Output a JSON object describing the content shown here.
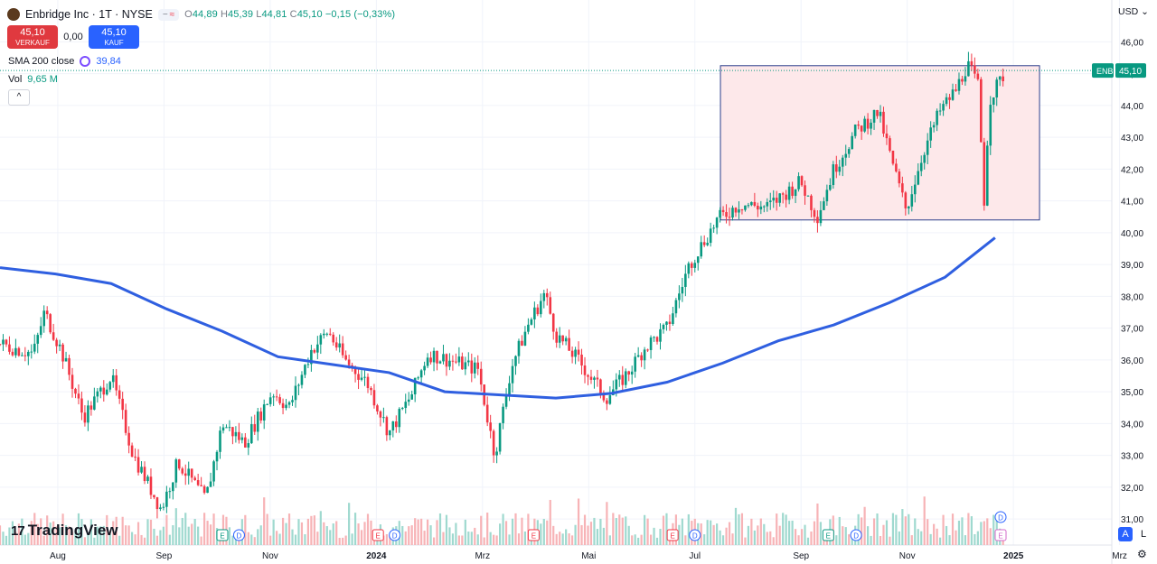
{
  "header": {
    "title": "Enbridge Inc · 1T · NYSE",
    "ohlc": {
      "open_label": "O",
      "open": "44,89",
      "high_label": "H",
      "high": "45,39",
      "low_label": "L",
      "low": "44,81",
      "close_label": "C",
      "close": "45,10",
      "change": "−0,15 (−0,33%)"
    },
    "pill_icons": [
      "minus-icon",
      "approx-icon"
    ]
  },
  "trade": {
    "sell_price": "45,10",
    "sell_label": "VERKAUF",
    "spread": "0,00",
    "buy_price": "45,10",
    "buy_label": "KAUF"
  },
  "indicators": {
    "sma_label": "SMA 200 close",
    "sma_value": "39,84",
    "vol_label": "Vol",
    "vol_value": "9,65 M"
  },
  "currency": "USD",
  "price_tag": {
    "symbol": "ENB",
    "price": "45,10"
  },
  "logo_text": "TradingView",
  "controls": {
    "auto": "A",
    "log": "L"
  },
  "colors": {
    "up": "#089981",
    "down": "#f23645",
    "sma": "#2f5fe0",
    "box_fill": "#fde8ea",
    "box_stroke": "#2c3e8c",
    "price_line": "#089981"
  },
  "chart_data": {
    "type": "candlestick",
    "y_ticks": [
      "46,00",
      "45,00",
      "44,00",
      "43,00",
      "42,00",
      "41,00",
      "40,00",
      "39,00",
      "38,00",
      "37,00",
      "36,00",
      "35,00",
      "34,00",
      "33,00",
      "32,00",
      "31,00"
    ],
    "y_range": [
      30.5,
      46.5
    ],
    "x_ticks": [
      "Aug",
      "Sep",
      "Nov",
      "2024",
      "Mrz",
      "Mai",
      "Jul",
      "Sep",
      "Nov",
      "2025",
      "Mrz"
    ],
    "price_anchors": [
      [
        0,
        36.5
      ],
      [
        0.03,
        36.2
      ],
      [
        0.04,
        37.5
      ],
      [
        0.055,
        36.3
      ],
      [
        0.075,
        34.2
      ],
      [
        0.1,
        35.5
      ],
      [
        0.12,
        33.0
      ],
      [
        0.145,
        31.3
      ],
      [
        0.16,
        32.8
      ],
      [
        0.185,
        31.6
      ],
      [
        0.2,
        34.0
      ],
      [
        0.22,
        33.4
      ],
      [
        0.245,
        35.0
      ],
      [
        0.26,
        34.5
      ],
      [
        0.28,
        36.3
      ],
      [
        0.295,
        36.9
      ],
      [
        0.31,
        36.0
      ],
      [
        0.33,
        35.3
      ],
      [
        0.35,
        33.7
      ],
      [
        0.37,
        34.9
      ],
      [
        0.385,
        36.2
      ],
      [
        0.43,
        35.7
      ],
      [
        0.445,
        33.0
      ],
      [
        0.46,
        35.8
      ],
      [
        0.475,
        37.1
      ],
      [
        0.49,
        38.1
      ],
      [
        0.5,
        36.8
      ],
      [
        0.52,
        36.0
      ],
      [
        0.545,
        34.8
      ],
      [
        0.565,
        35.6
      ],
      [
        0.58,
        36.4
      ],
      [
        0.6,
        37.0
      ],
      [
        0.62,
        39.0
      ],
      [
        0.645,
        40.4
      ],
      [
        0.665,
        40.9
      ],
      [
        0.69,
        40.8
      ],
      [
        0.72,
        41.6
      ],
      [
        0.735,
        40.5
      ],
      [
        0.75,
        42.0
      ],
      [
        0.77,
        43.2
      ],
      [
        0.79,
        43.8
      ],
      [
        0.8,
        42.5
      ],
      [
        0.815,
        40.7
      ],
      [
        0.83,
        42.5
      ],
      [
        0.845,
        43.8
      ],
      [
        0.86,
        44.5
      ],
      [
        0.87,
        45.3
      ],
      [
        0.88,
        44.6
      ],
      [
        0.885,
        40.9
      ],
      [
        0.89,
        44.2
      ],
      [
        0.905,
        45.1
      ]
    ],
    "sma_points": [
      [
        0,
        38.9
      ],
      [
        0.05,
        38.7
      ],
      [
        0.1,
        38.4
      ],
      [
        0.15,
        37.6
      ],
      [
        0.2,
        36.9
      ],
      [
        0.25,
        36.1
      ],
      [
        0.3,
        35.85
      ],
      [
        0.35,
        35.6
      ],
      [
        0.4,
        35.0
      ],
      [
        0.45,
        34.9
      ],
      [
        0.5,
        34.8
      ],
      [
        0.55,
        34.95
      ],
      [
        0.6,
        35.3
      ],
      [
        0.65,
        35.9
      ],
      [
        0.7,
        36.6
      ],
      [
        0.75,
        37.1
      ],
      [
        0.8,
        37.8
      ],
      [
        0.85,
        38.6
      ],
      [
        0.895,
        39.84
      ]
    ],
    "box": {
      "x_start": 0.648,
      "x_end": 0.935,
      "y_top": 45.25,
      "y_bottom": 40.4
    },
    "markers": [
      {
        "type": "E",
        "x": 0.2
      },
      {
        "type": "D",
        "x": 0.215
      },
      {
        "type": "E",
        "x": 0.34
      },
      {
        "type": "D",
        "x": 0.355
      },
      {
        "type": "E",
        "x": 0.48
      },
      {
        "type": "E",
        "x": 0.605
      },
      {
        "type": "D",
        "x": 0.625
      },
      {
        "type": "E",
        "x": 0.745
      },
      {
        "type": "D",
        "x": 0.77
      },
      {
        "type": "D",
        "x": 0.9
      },
      {
        "type": "E",
        "x": 0.9
      }
    ]
  }
}
